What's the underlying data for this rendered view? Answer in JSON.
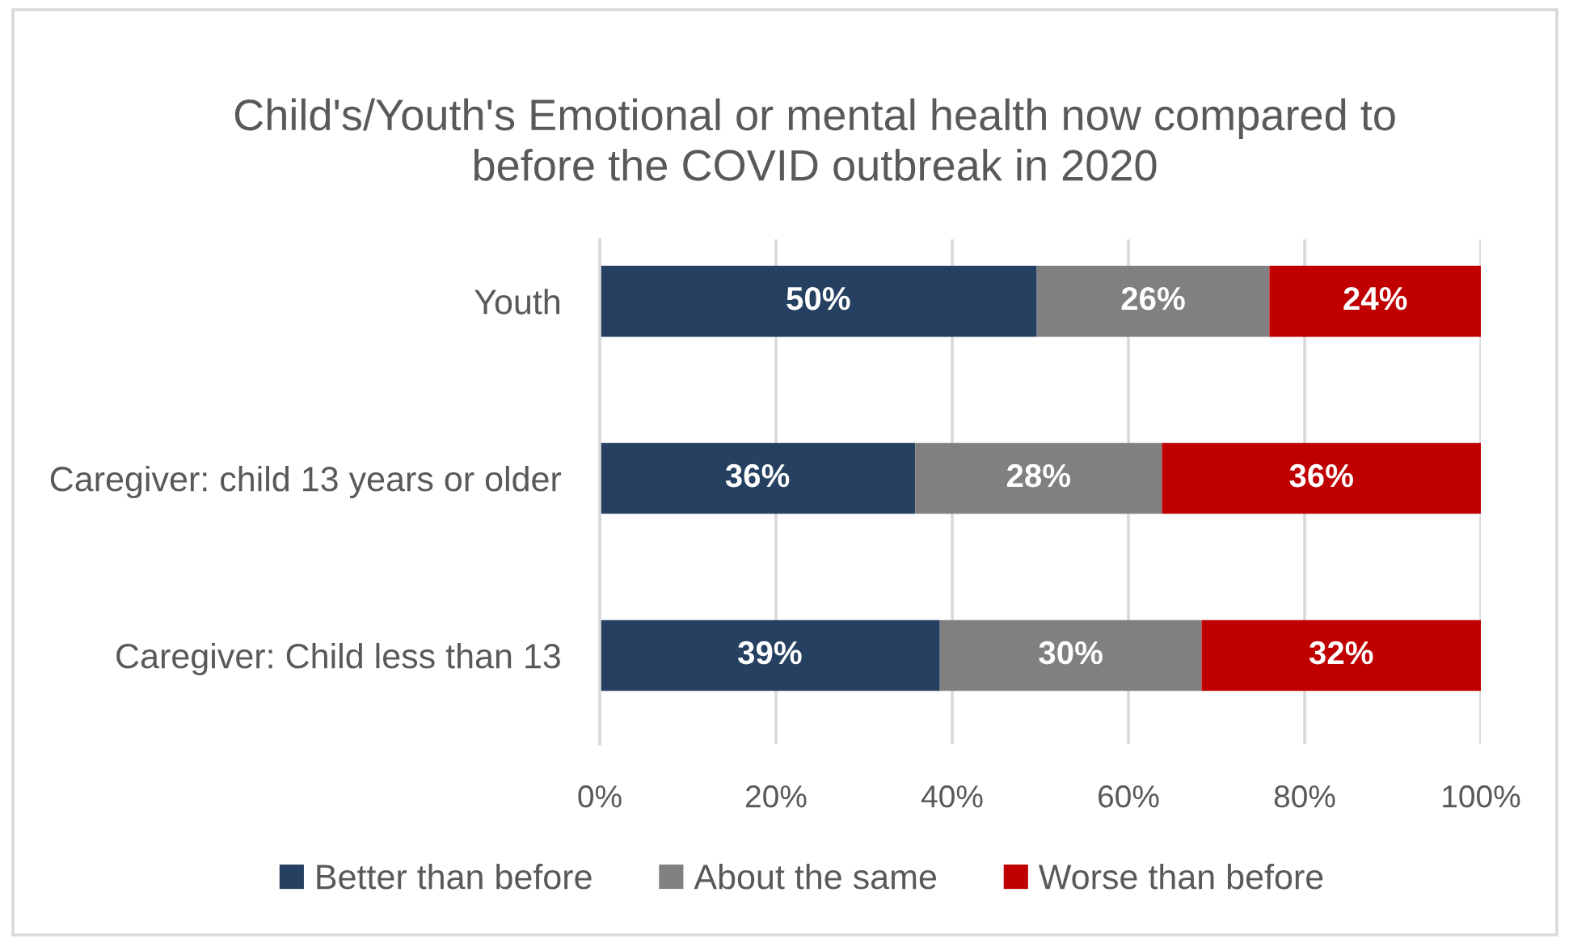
{
  "chart_data": {
    "type": "bar",
    "orientation": "horizontal",
    "stacked": true,
    "title": "Child's/Youth's Emotional or mental health now compared to\nbefore the COVID outbreak in 2020",
    "categories": [
      "Youth",
      "Caregiver: child 13 years or older",
      "Caregiver: Child less than 13"
    ],
    "series": [
      {
        "name": "Better than before",
        "color": "#264061",
        "values": [
          49.6,
          35.8,
          38.6
        ],
        "value_labels": [
          "50%",
          "36%",
          "39%"
        ]
      },
      {
        "name": "About the same",
        "color": "#808080",
        "values": [
          26.4,
          28.0,
          29.7
        ],
        "value_labels": [
          "26%",
          "28%",
          "30%"
        ]
      },
      {
        "name": "Worse than before",
        "color": "#c00000",
        "values": [
          24.0,
          36.2,
          31.7
        ],
        "value_labels": [
          "24%",
          "36%",
          "32%"
        ]
      }
    ],
    "xlim": [
      0,
      100
    ],
    "xticks": [
      {
        "value": 0,
        "label": "0%"
      },
      {
        "value": 20,
        "label": "20%"
      },
      {
        "value": 40,
        "label": "40%"
      },
      {
        "value": 60,
        "label": "60%"
      },
      {
        "value": 80,
        "label": "80%"
      },
      {
        "value": 100,
        "label": "100%"
      }
    ],
    "grid": "x",
    "legend": "bottom"
  }
}
